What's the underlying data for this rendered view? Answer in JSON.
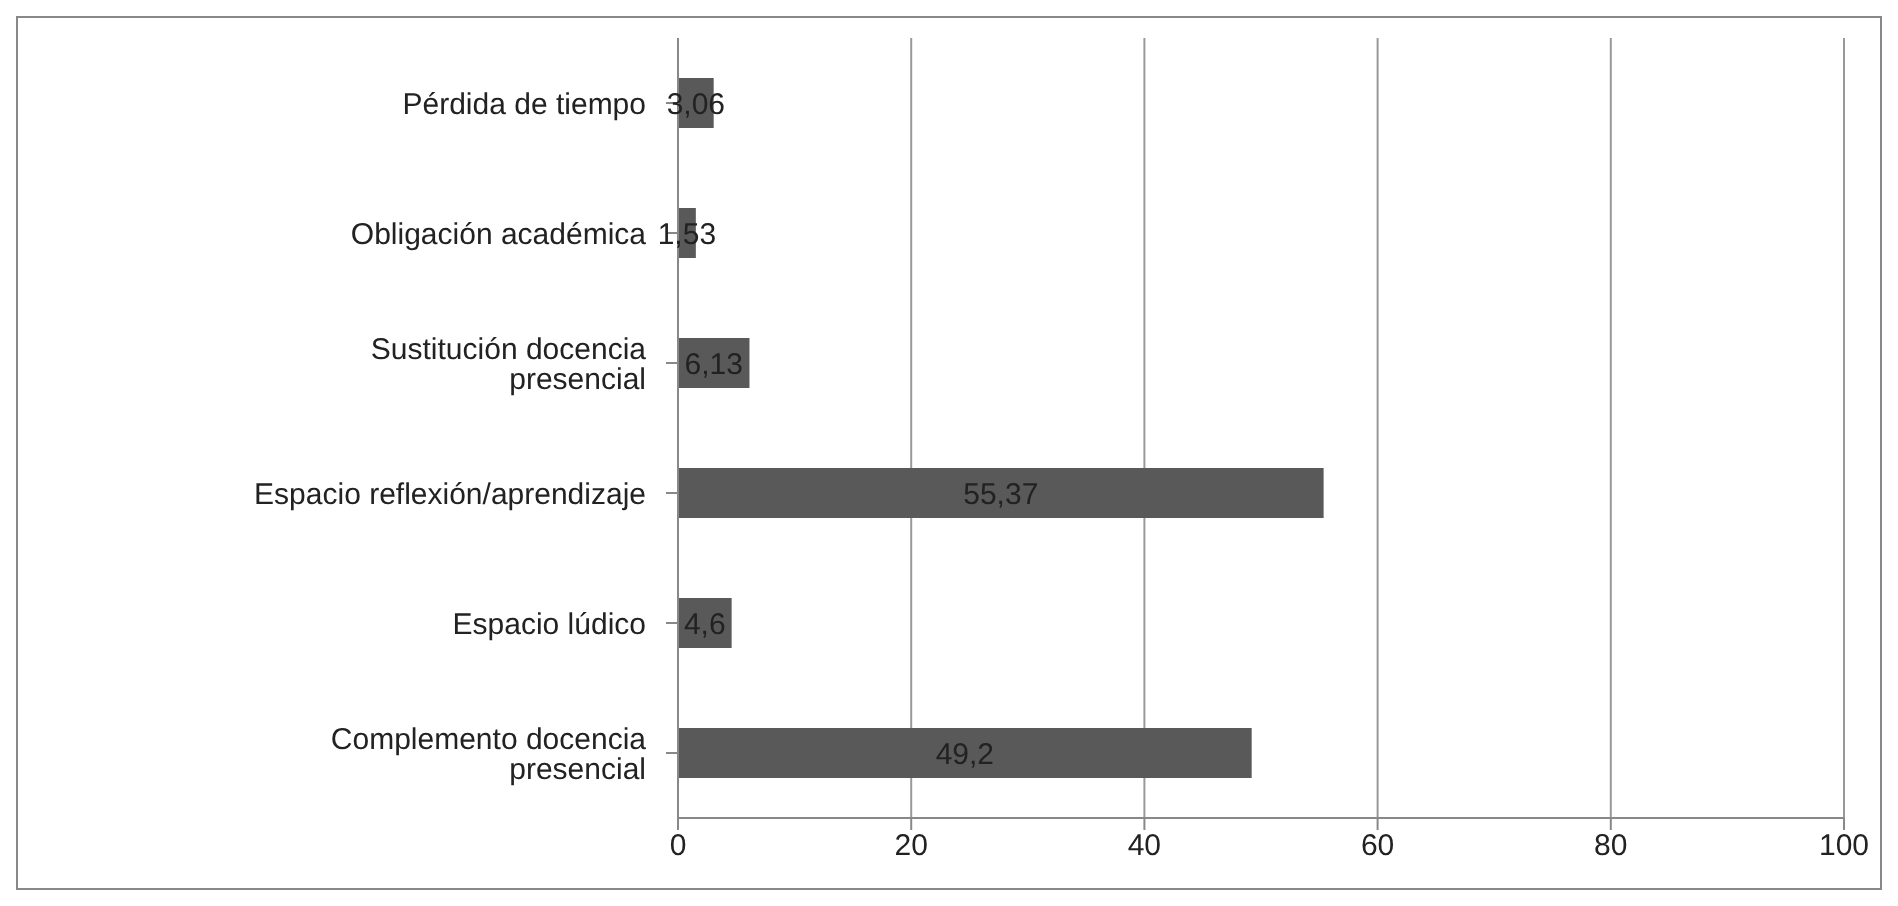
{
  "chart_data": {
    "type": "bar",
    "orientation": "horizontal",
    "categories": [
      "Pérdida de tiempo",
      "Obligación académica",
      "Sustitución docencia presencial",
      "Espacio reflexión/aprendizaje",
      "Espacio lúdico",
      "Complemento docencia presencial"
    ],
    "values": [
      3.06,
      1.53,
      6.13,
      55.37,
      4.6,
      49.2
    ],
    "value_labels": [
      "3,06",
      "1,53",
      "6,13",
      "55,37",
      "4,6",
      "49,2"
    ],
    "color": "#595959",
    "xlim": [
      0,
      100
    ],
    "xticks": [
      0,
      20,
      40,
      60,
      80,
      100
    ],
    "grid": "x"
  }
}
